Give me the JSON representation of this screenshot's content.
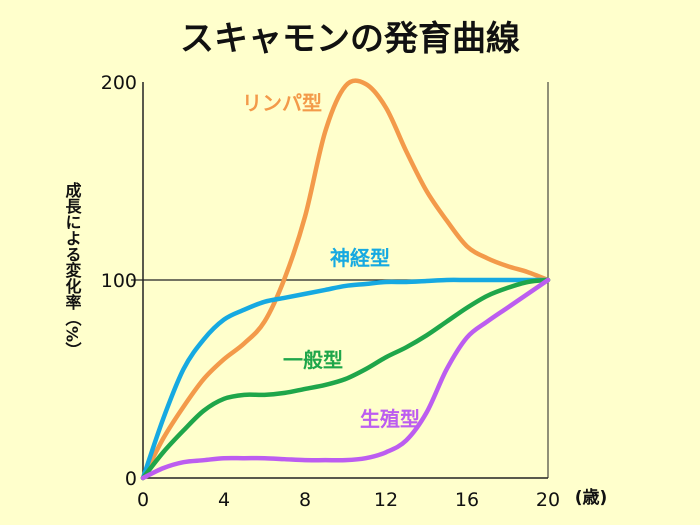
{
  "chart_data": {
    "type": "line",
    "title": "スキャモンの発育曲線",
    "xlabel": "(歳)",
    "ylabel": "成長による変化率（%）",
    "xlim": [
      0,
      20
    ],
    "ylim": [
      0,
      200
    ],
    "x_ticks": [
      "0",
      "4",
      "8",
      "12",
      "16",
      "20"
    ],
    "y_ticks": [
      "0",
      "100",
      "200"
    ],
    "reference_line_y": 100,
    "series": [
      {
        "name": "リンパ型",
        "color": "#f39a4a",
        "x": [
          0,
          1,
          2,
          3,
          4,
          5,
          6,
          7,
          8,
          9,
          10,
          11,
          12,
          13,
          14,
          15,
          16,
          17,
          18,
          19,
          20
        ],
        "y": [
          0,
          20,
          36,
          50,
          60,
          68,
          79,
          101,
          132,
          175,
          198,
          199,
          187,
          165,
          145,
          130,
          117,
          111,
          107,
          104,
          100
        ]
      },
      {
        "name": "神経型",
        "color": "#16a9e1",
        "x": [
          0,
          1,
          2,
          3,
          4,
          5,
          6,
          7,
          8,
          9,
          10,
          11,
          12,
          13,
          14,
          15,
          16,
          17,
          18,
          19,
          20
        ],
        "y": [
          0,
          30,
          55,
          70,
          80,
          85,
          89,
          91,
          93,
          95,
          97,
          98,
          99,
          99,
          99.5,
          100,
          100,
          100,
          100,
          100,
          100
        ]
      },
      {
        "name": "一般型",
        "color": "#1fa64a",
        "x": [
          0,
          1,
          2,
          3,
          4,
          5,
          6,
          7,
          8,
          9,
          10,
          11,
          12,
          13,
          14,
          15,
          16,
          17,
          18,
          19,
          20
        ],
        "y": [
          0,
          13,
          24,
          34,
          40,
          42,
          42,
          43,
          45,
          47,
          50,
          55,
          61,
          66,
          72,
          79,
          86,
          92,
          96,
          99,
          100
        ]
      },
      {
        "name": "生殖型",
        "color": "#bc5df0",
        "x": [
          0,
          1,
          2,
          3,
          4,
          5,
          6,
          7,
          8,
          9,
          10,
          11,
          12,
          13,
          14,
          15,
          16,
          17,
          18,
          19,
          20
        ],
        "y": [
          0,
          5,
          8,
          9,
          10,
          10,
          10,
          9.5,
          9,
          9,
          9,
          10,
          13,
          19,
          33,
          55,
          71,
          79,
          86,
          93,
          100
        ]
      }
    ]
  }
}
